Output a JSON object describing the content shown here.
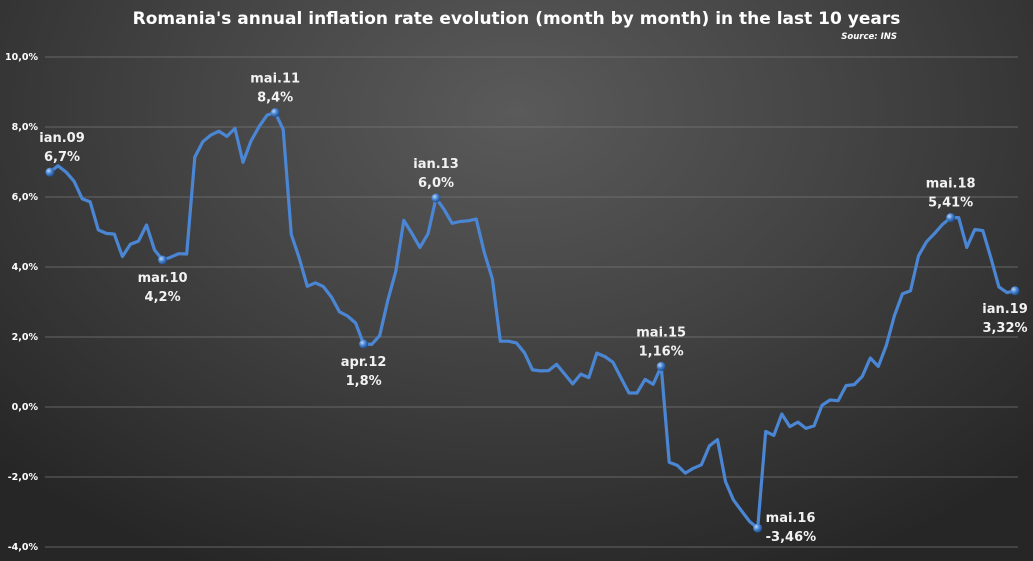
{
  "chart_data": {
    "type": "line",
    "title": "Romania's annual inflation rate evolution (month by month) in the last 10 years",
    "source": "Source: INS",
    "xlabel": "",
    "ylabel": "",
    "x_start": "ian.09",
    "x_end": "ian.19",
    "ylim": [
      -4,
      10
    ],
    "yticks": [
      "-4,0%",
      "-2,0%",
      "0,0%",
      "2,0%",
      "4,0%",
      "6,0%",
      "8,0%",
      "10,0%"
    ],
    "ytick_values": [
      -4,
      -2,
      0,
      2,
      4,
      6,
      8,
      10
    ],
    "grid": true,
    "line_color": "#4a86d4",
    "values": [
      6.71,
      6.89,
      6.71,
      6.45,
      5.95,
      5.86,
      5.06,
      4.96,
      4.94,
      4.3,
      4.65,
      4.74,
      5.2,
      4.49,
      4.2,
      4.28,
      4.38,
      4.37,
      7.14,
      7.58,
      7.77,
      7.88,
      7.73,
      7.96,
      6.99,
      7.6,
      8.01,
      8.34,
      8.41,
      7.93,
      4.93,
      4.25,
      3.45,
      3.55,
      3.44,
      3.14,
      2.72,
      2.6,
      2.4,
      1.8,
      1.79,
      2.04,
      3.05,
      3.88,
      5.33,
      4.96,
      4.56,
      4.95,
      5.97,
      5.65,
      5.25,
      5.3,
      5.32,
      5.37,
      4.41,
      3.67,
      1.88,
      1.88,
      1.83,
      1.55,
      1.06,
      1.03,
      1.04,
      1.22,
      0.94,
      0.66,
      0.94,
      0.84,
      1.54,
      1.44,
      1.28,
      0.83,
      0.4,
      0.4,
      0.79,
      0.65,
      1.16,
      -1.58,
      -1.67,
      -1.89,
      -1.75,
      -1.65,
      -1.11,
      -0.93,
      -2.13,
      -2.66,
      -2.97,
      -3.27,
      -3.46,
      -0.7,
      -0.81,
      -0.2,
      -0.56,
      -0.43,
      -0.61,
      -0.54,
      0.05,
      0.2,
      0.18,
      0.61,
      0.64,
      0.87,
      1.4,
      1.16,
      1.76,
      2.61,
      3.23,
      3.32,
      4.32,
      4.72,
      4.96,
      5.22,
      5.41,
      5.41,
      4.56,
      5.07,
      5.04,
      4.26,
      3.43,
      3.27,
      3.32
    ],
    "annotations": [
      {
        "index": 0,
        "month": "ian.09",
        "value_label": "6,7%",
        "position": "above"
      },
      {
        "index": 14,
        "month": "mar.10",
        "value_label": "4,2%",
        "position": "below"
      },
      {
        "index": 28,
        "month": "mai.11",
        "value_label": "8,4%",
        "position": "above"
      },
      {
        "index": 39,
        "month": "apr.12",
        "value_label": "1,8%",
        "position": "below"
      },
      {
        "index": 48,
        "month": "ian.13",
        "value_label": "6,0%",
        "position": "above"
      },
      {
        "index": 76,
        "month": "mai.15",
        "value_label": "1,16%",
        "position": "above"
      },
      {
        "index": 88,
        "month": "mai.16",
        "value_label": "-3,46%",
        "position": "right"
      },
      {
        "index": 112,
        "month": "mai.18",
        "value_label": "5,41%",
        "position": "above"
      },
      {
        "index": 120,
        "month": "ian.19",
        "value_label": "3,32%",
        "position": "below"
      }
    ]
  }
}
